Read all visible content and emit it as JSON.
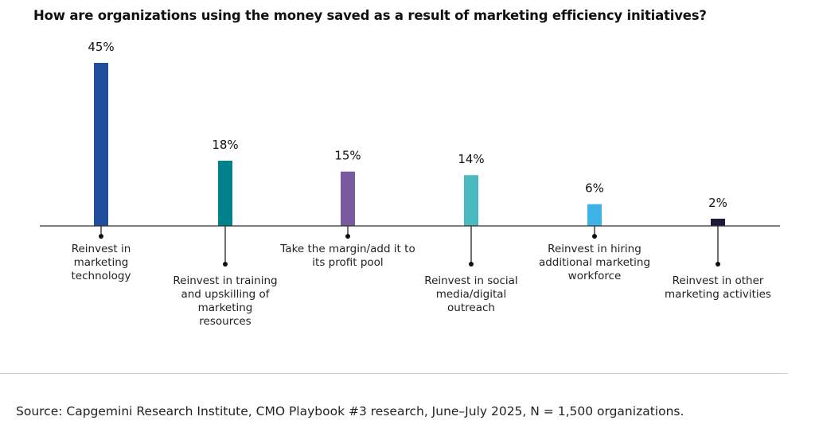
{
  "chart_data": {
    "type": "bar",
    "title": "How are organizations using the money saved as a result of marketing efficiency initiatives?",
    "categories": [
      "Reinvest in marketing technology",
      "Reinvest in training and upskilling of marketing resources",
      "Take the margin/add it to its profit pool",
      "Reinvest in social media/digital outreach",
      "Reinvest in hiring additional marketing workforce",
      "Reinvest in other marketing activities"
    ],
    "category_lines": [
      [
        "Reinvest in",
        "marketing",
        "technology"
      ],
      [
        "Reinvest in training",
        "and upskilling of",
        "marketing",
        "resources"
      ],
      [
        "Take the margin/add it to",
        "its profit pool"
      ],
      [
        "Reinvest in social",
        "media/digital",
        "outreach"
      ],
      [
        "Reinvest in hiring",
        "additional marketing",
        "workforce"
      ],
      [
        "Reinvest in other",
        "marketing activities"
      ]
    ],
    "values": [
      45,
      18,
      15,
      14,
      6,
      2
    ],
    "data_labels": [
      "45%",
      "18%",
      "15%",
      "14%",
      "6%",
      "2%"
    ],
    "colors": [
      "#1f4e9c",
      "#00828c",
      "#7a5a9e",
      "#4bb9c0",
      "#3fb2e8",
      "#1c1c3a"
    ],
    "unit": "%",
    "ylim": [
      0,
      45
    ],
    "grid": false,
    "legend": "none"
  },
  "source": "Source: Capgemini Research Institute, CMO Playbook #3 research, June–July 2025, N = 1,500 organizations."
}
